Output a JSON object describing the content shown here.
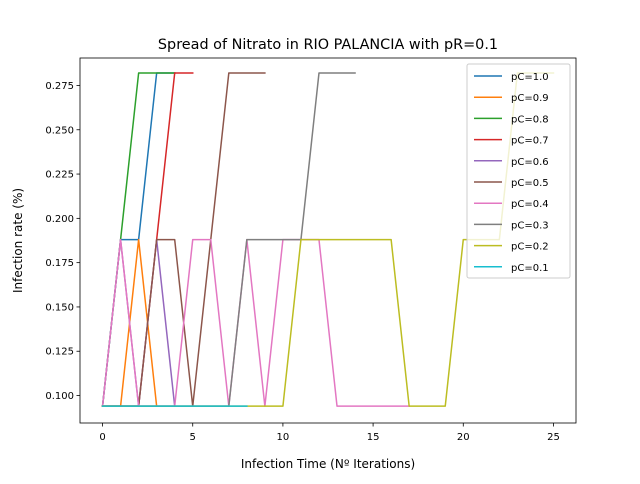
{
  "chart_data": {
    "type": "line",
    "title": "Spread of Nitrato in RIO PALANCIA with pR=0.1",
    "xlabel": "Infection Time (Nº Iterations)",
    "ylabel": "Infection rate (%)",
    "xlim": [
      -1.25,
      26.25
    ],
    "ylim": [
      0.0845,
      0.2905
    ],
    "xticks": [
      0,
      5,
      10,
      15,
      20,
      25
    ],
    "xtick_labels": [
      "0",
      "5",
      "10",
      "15",
      "20",
      "25"
    ],
    "yticks": [
      0.1,
      0.125,
      0.15,
      0.175,
      0.2,
      0.225,
      0.25,
      0.275
    ],
    "ytick_labels": [
      "0.100",
      "0.125",
      "0.150",
      "0.175",
      "0.200",
      "0.225",
      "0.250",
      "0.275"
    ],
    "grid": false,
    "legend_position": "top-right",
    "series": [
      {
        "name": "pC=1.0",
        "color": "#1f77b4",
        "x": [
          0,
          1,
          2,
          3,
          4
        ],
        "y": [
          0.094,
          0.188,
          0.188,
          0.282,
          0.282
        ]
      },
      {
        "name": "pC=0.9",
        "color": "#ff7f0e",
        "x": [
          0,
          1,
          2,
          3
        ],
        "y": [
          0.094,
          0.094,
          0.188,
          0.094
        ]
      },
      {
        "name": "pC=0.8",
        "color": "#2ca02c",
        "x": [
          0,
          1,
          2,
          3,
          4
        ],
        "y": [
          0.094,
          0.188,
          0.282,
          0.282,
          0.282
        ]
      },
      {
        "name": "pC=0.7",
        "color": "#d62728",
        "x": [
          0,
          1,
          2,
          3,
          4,
          5
        ],
        "y": [
          0.094,
          0.094,
          0.094,
          0.188,
          0.282,
          0.282
        ]
      },
      {
        "name": "pC=0.6",
        "color": "#9467bd",
        "x": [
          0,
          1,
          2,
          3,
          4
        ],
        "y": [
          0.094,
          0.188,
          0.094,
          0.188,
          0.094
        ]
      },
      {
        "name": "pC=0.5",
        "color": "#8c564b",
        "x": [
          0,
          1,
          2,
          3,
          4,
          5,
          6,
          7,
          8,
          9
        ],
        "y": [
          0.094,
          0.094,
          0.094,
          0.188,
          0.188,
          0.094,
          0.188,
          0.282,
          0.282,
          0.282
        ]
      },
      {
        "name": "pC=0.4",
        "color": "#e377c2",
        "x": [
          0,
          1,
          2,
          3,
          4,
          5,
          6,
          7,
          8,
          9,
          10,
          11,
          12,
          13,
          14,
          15,
          16,
          17
        ],
        "y": [
          0.094,
          0.188,
          0.094,
          0.094,
          0.094,
          0.188,
          0.188,
          0.094,
          0.188,
          0.094,
          0.188,
          0.188,
          0.188,
          0.094,
          0.094,
          0.094,
          0.094,
          0.094
        ]
      },
      {
        "name": "pC=0.3",
        "color": "#7f7f7f",
        "x": [
          0,
          1,
          2,
          3,
          4,
          5,
          6,
          7,
          8,
          9,
          10,
          11,
          12,
          13,
          14
        ],
        "y": [
          0.094,
          0.094,
          0.094,
          0.094,
          0.094,
          0.094,
          0.094,
          0.094,
          0.188,
          0.188,
          0.188,
          0.188,
          0.282,
          0.282,
          0.282
        ]
      },
      {
        "name": "pC=0.2",
        "color": "#bcbd22",
        "x": [
          0,
          1,
          2,
          3,
          4,
          5,
          6,
          7,
          8,
          9,
          10,
          11,
          12,
          13,
          14,
          15,
          16,
          17,
          18,
          19,
          20,
          21,
          22,
          23,
          24,
          25
        ],
        "y": [
          0.094,
          0.094,
          0.094,
          0.094,
          0.094,
          0.094,
          0.094,
          0.094,
          0.094,
          0.094,
          0.094,
          0.188,
          0.188,
          0.188,
          0.188,
          0.188,
          0.188,
          0.094,
          0.094,
          0.094,
          0.188,
          0.188,
          0.188,
          0.282,
          0.282,
          0.282
        ]
      },
      {
        "name": "pC=0.1",
        "color": "#17becf",
        "x": [
          0,
          1,
          2,
          3,
          4,
          5,
          6,
          7,
          8
        ],
        "y": [
          0.094,
          0.094,
          0.094,
          0.094,
          0.094,
          0.094,
          0.094,
          0.094,
          0.094
        ]
      }
    ]
  }
}
